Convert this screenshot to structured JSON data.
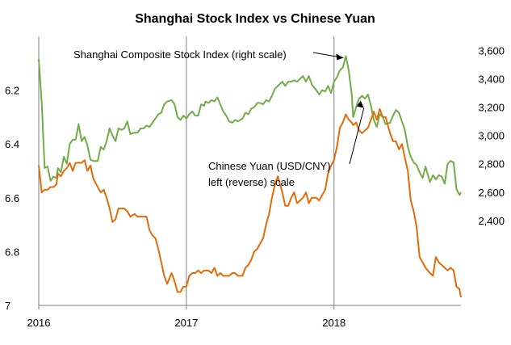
{
  "chart_data": {
    "type": "line",
    "title": "Shanghai Stock Index vs Chinese Yuan",
    "x_tick_labels": [
      "2016",
      "2017",
      "2018"
    ],
    "x_ticks": [
      2016,
      2017,
      2018
    ],
    "x_range": [
      2016.0,
      2018.86
    ],
    "left_axis": {
      "reverse": true,
      "range": [
        6.0,
        7.0
      ],
      "ticks": [
        6.2,
        6.4,
        6.6,
        6.8,
        7
      ],
      "tick_labels": [
        "6.2",
        "6.4",
        "6.6",
        "6.8",
        "7"
      ]
    },
    "right_axis": {
      "range": [
        1800,
        3700
      ],
      "ticks": [
        2400,
        2600,
        2800,
        3000,
        3200,
        3400,
        3600
      ],
      "tick_labels": [
        "2,400",
        "2,600",
        "2,800",
        "3,000",
        "3,200",
        "3,400",
        "3,600"
      ]
    },
    "grid": false,
    "annotations": [
      {
        "text": "Shanghai Composite Stock Index (right scale)",
        "points_to": [
          2018.08,
          3560
        ]
      },
      {
        "text": "Chinese Yuan (USD/CNY)",
        "text2": "left (reverse) scale",
        "points_to": [
          2018.23,
          6.29
        ]
      }
    ],
    "series": [
      {
        "axis": "right",
        "color": "#70ad47",
        "points": [
          [
            2016.0,
            3540
          ],
          [
            2016.02,
            3230
          ],
          [
            2016.04,
            2770
          ],
          [
            2016.06,
            2780
          ],
          [
            2016.08,
            2680
          ],
          [
            2016.1,
            2710
          ],
          [
            2016.12,
            2700
          ],
          [
            2016.13,
            2770
          ],
          [
            2016.15,
            2740
          ],
          [
            2016.17,
            2850
          ],
          [
            2016.19,
            2800
          ],
          [
            2016.21,
            2940
          ],
          [
            2016.23,
            2970
          ],
          [
            2016.25,
            2970
          ],
          [
            2016.27,
            3080
          ],
          [
            2016.29,
            2960
          ],
          [
            2016.31,
            2990
          ],
          [
            2016.33,
            2930
          ],
          [
            2016.35,
            2830
          ],
          [
            2016.37,
            2820
          ],
          [
            2016.4,
            2820
          ],
          [
            2016.42,
            2920
          ],
          [
            2016.44,
            2900
          ],
          [
            2016.46,
            2960
          ],
          [
            2016.48,
            3050
          ],
          [
            2016.5,
            3000
          ],
          [
            2016.52,
            2960
          ],
          [
            2016.54,
            3050
          ],
          [
            2016.56,
            3040
          ],
          [
            2016.58,
            3050
          ],
          [
            2016.6,
            3100
          ],
          [
            2016.62,
            3010
          ],
          [
            2016.65,
            3020
          ],
          [
            2016.67,
            3020
          ],
          [
            2016.69,
            3050
          ],
          [
            2016.71,
            3050
          ],
          [
            2016.73,
            3070
          ],
          [
            2016.75,
            3060
          ],
          [
            2016.77,
            3090
          ],
          [
            2016.79,
            3120
          ],
          [
            2016.81,
            3150
          ],
          [
            2016.83,
            3160
          ],
          [
            2016.85,
            3220
          ],
          [
            2016.87,
            3240
          ],
          [
            2016.9,
            3250
          ],
          [
            2016.92,
            3220
          ],
          [
            2016.94,
            3130
          ],
          [
            2016.96,
            3110
          ],
          [
            2016.98,
            3140
          ],
          [
            2017.0,
            3120
          ],
          [
            2017.02,
            3150
          ],
          [
            2017.04,
            3170
          ],
          [
            2017.06,
            3140
          ],
          [
            2017.08,
            3140
          ],
          [
            2017.1,
            3220
          ],
          [
            2017.12,
            3210
          ],
          [
            2017.13,
            3240
          ],
          [
            2017.15,
            3230
          ],
          [
            2017.17,
            3250
          ],
          [
            2017.19,
            3240
          ],
          [
            2017.21,
            3270
          ],
          [
            2017.23,
            3220
          ],
          [
            2017.25,
            3170
          ],
          [
            2017.27,
            3140
          ],
          [
            2017.29,
            3100
          ],
          [
            2017.31,
            3090
          ],
          [
            2017.33,
            3110
          ],
          [
            2017.35,
            3100
          ],
          [
            2017.38,
            3120
          ],
          [
            2017.4,
            3160
          ],
          [
            2017.42,
            3150
          ],
          [
            2017.44,
            3190
          ],
          [
            2017.46,
            3200
          ],
          [
            2017.48,
            3230
          ],
          [
            2017.5,
            3230
          ],
          [
            2017.52,
            3220
          ],
          [
            2017.54,
            3250
          ],
          [
            2017.56,
            3240
          ],
          [
            2017.58,
            3280
          ],
          [
            2017.6,
            3330
          ],
          [
            2017.62,
            3350
          ],
          [
            2017.65,
            3380
          ],
          [
            2017.67,
            3350
          ],
          [
            2017.69,
            3380
          ],
          [
            2017.71,
            3380
          ],
          [
            2017.73,
            3390
          ],
          [
            2017.75,
            3380
          ],
          [
            2017.77,
            3400
          ],
          [
            2017.79,
            3420
          ],
          [
            2017.81,
            3380
          ],
          [
            2017.83,
            3420
          ],
          [
            2017.85,
            3360
          ],
          [
            2017.88,
            3320
          ],
          [
            2017.9,
            3290
          ],
          [
            2017.92,
            3320
          ],
          [
            2017.94,
            3310
          ],
          [
            2017.96,
            3350
          ],
          [
            2017.98,
            3300
          ],
          [
            2018.0,
            3380
          ],
          [
            2018.02,
            3410
          ],
          [
            2018.04,
            3460
          ],
          [
            2018.06,
            3480
          ],
          [
            2018.08,
            3560
          ],
          [
            2018.1,
            3460
          ],
          [
            2018.12,
            3290
          ],
          [
            2018.13,
            3130
          ],
          [
            2018.15,
            3200
          ],
          [
            2018.17,
            3260
          ],
          [
            2018.19,
            3280
          ],
          [
            2018.21,
            3260
          ],
          [
            2018.23,
            3290
          ],
          [
            2018.25,
            3210
          ],
          [
            2018.27,
            3110
          ],
          [
            2018.29,
            3060
          ],
          [
            2018.31,
            3150
          ],
          [
            2018.33,
            3130
          ],
          [
            2018.35,
            3080
          ],
          [
            2018.38,
            3090
          ],
          [
            2018.4,
            3140
          ],
          [
            2018.42,
            3180
          ],
          [
            2018.44,
            3160
          ],
          [
            2018.46,
            3100
          ],
          [
            2018.48,
            3040
          ],
          [
            2018.5,
            2920
          ],
          [
            2018.52,
            2850
          ],
          [
            2018.54,
            2810
          ],
          [
            2018.56,
            2790
          ],
          [
            2018.58,
            2740
          ],
          [
            2018.6,
            2700
          ],
          [
            2018.62,
            2780
          ],
          [
            2018.65,
            2670
          ],
          [
            2018.67,
            2720
          ],
          [
            2018.69,
            2690
          ],
          [
            2018.71,
            2720
          ],
          [
            2018.73,
            2710
          ],
          [
            2018.75,
            2660
          ],
          [
            2018.77,
            2800
          ],
          [
            2018.79,
            2820
          ],
          [
            2018.81,
            2810
          ],
          [
            2018.83,
            2620
          ],
          [
            2018.85,
            2580
          ],
          [
            2018.86,
            2600
          ]
        ]
      },
      {
        "axis": "left",
        "color": "#e36c09",
        "points": [
          [
            2016.0,
            6.48
          ],
          [
            2016.02,
            6.58
          ],
          [
            2016.04,
            6.57
          ],
          [
            2016.06,
            6.57
          ],
          [
            2016.08,
            6.56
          ],
          [
            2016.1,
            6.56
          ],
          [
            2016.12,
            6.55
          ],
          [
            2016.13,
            6.51
          ],
          [
            2016.15,
            6.52
          ],
          [
            2016.17,
            6.5
          ],
          [
            2016.19,
            6.49
          ],
          [
            2016.21,
            6.47
          ],
          [
            2016.23,
            6.5
          ],
          [
            2016.25,
            6.47
          ],
          [
            2016.27,
            6.47
          ],
          [
            2016.29,
            6.47
          ],
          [
            2016.31,
            6.46
          ],
          [
            2016.33,
            6.5
          ],
          [
            2016.35,
            6.48
          ],
          [
            2016.37,
            6.53
          ],
          [
            2016.4,
            6.56
          ],
          [
            2016.42,
            6.58
          ],
          [
            2016.44,
            6.57
          ],
          [
            2016.46,
            6.6
          ],
          [
            2016.48,
            6.64
          ],
          [
            2016.5,
            6.69
          ],
          [
            2016.52,
            6.68
          ],
          [
            2016.54,
            6.64
          ],
          [
            2016.56,
            6.64
          ],
          [
            2016.58,
            6.64
          ],
          [
            2016.6,
            6.65
          ],
          [
            2016.62,
            6.67
          ],
          [
            2016.65,
            6.66
          ],
          [
            2016.67,
            6.67
          ],
          [
            2016.69,
            6.67
          ],
          [
            2016.71,
            6.67
          ],
          [
            2016.73,
            6.67
          ],
          [
            2016.75,
            6.72
          ],
          [
            2016.77,
            6.74
          ],
          [
            2016.79,
            6.75
          ],
          [
            2016.81,
            6.79
          ],
          [
            2016.83,
            6.84
          ],
          [
            2016.85,
            6.89
          ],
          [
            2016.87,
            6.92
          ],
          [
            2016.9,
            6.88
          ],
          [
            2016.92,
            6.91
          ],
          [
            2016.94,
            6.95
          ],
          [
            2016.96,
            6.95
          ],
          [
            2016.98,
            6.93
          ],
          [
            2017.0,
            6.93
          ],
          [
            2017.02,
            6.89
          ],
          [
            2017.04,
            6.88
          ],
          [
            2017.06,
            6.88
          ],
          [
            2017.08,
            6.87
          ],
          [
            2017.1,
            6.88
          ],
          [
            2017.12,
            6.87
          ],
          [
            2017.13,
            6.87
          ],
          [
            2017.15,
            6.87
          ],
          [
            2017.17,
            6.88
          ],
          [
            2017.19,
            6.86
          ],
          [
            2017.21,
            6.89
          ],
          [
            2017.23,
            6.88
          ],
          [
            2017.25,
            6.89
          ],
          [
            2017.27,
            6.89
          ],
          [
            2017.29,
            6.89
          ],
          [
            2017.31,
            6.88
          ],
          [
            2017.33,
            6.88
          ],
          [
            2017.35,
            6.89
          ],
          [
            2017.38,
            6.89
          ],
          [
            2017.4,
            6.86
          ],
          [
            2017.42,
            6.85
          ],
          [
            2017.44,
            6.83
          ],
          [
            2017.46,
            6.8
          ],
          [
            2017.48,
            6.79
          ],
          [
            2017.5,
            6.77
          ],
          [
            2017.52,
            6.75
          ],
          [
            2017.54,
            6.7
          ],
          [
            2017.56,
            6.66
          ],
          [
            2017.58,
            6.6
          ],
          [
            2017.6,
            6.55
          ],
          [
            2017.62,
            6.52
          ],
          [
            2017.65,
            6.58
          ],
          [
            2017.67,
            6.63
          ],
          [
            2017.69,
            6.63
          ],
          [
            2017.71,
            6.6
          ],
          [
            2017.73,
            6.58
          ],
          [
            2017.75,
            6.62
          ],
          [
            2017.77,
            6.61
          ],
          [
            2017.79,
            6.6
          ],
          [
            2017.81,
            6.58
          ],
          [
            2017.83,
            6.62
          ],
          [
            2017.85,
            6.6
          ],
          [
            2017.88,
            6.6
          ],
          [
            2017.9,
            6.61
          ],
          [
            2017.92,
            6.59
          ],
          [
            2017.94,
            6.57
          ],
          [
            2017.96,
            6.51
          ],
          [
            2017.98,
            6.48
          ],
          [
            2018.0,
            6.46
          ],
          [
            2018.02,
            6.41
          ],
          [
            2018.04,
            6.34
          ],
          [
            2018.06,
            6.32
          ],
          [
            2018.08,
            6.29
          ],
          [
            2018.1,
            6.31
          ],
          [
            2018.12,
            6.32
          ],
          [
            2018.13,
            6.33
          ],
          [
            2018.15,
            6.32
          ],
          [
            2018.17,
            6.35
          ],
          [
            2018.19,
            6.36
          ],
          [
            2018.21,
            6.35
          ],
          [
            2018.23,
            6.34
          ],
          [
            2018.25,
            6.31
          ],
          [
            2018.27,
            6.28
          ],
          [
            2018.29,
            6.31
          ],
          [
            2018.31,
            6.27
          ],
          [
            2018.33,
            6.3
          ],
          [
            2018.35,
            6.3
          ],
          [
            2018.38,
            6.36
          ],
          [
            2018.4,
            6.39
          ],
          [
            2018.42,
            6.39
          ],
          [
            2018.44,
            6.42
          ],
          [
            2018.46,
            6.4
          ],
          [
            2018.48,
            6.45
          ],
          [
            2018.5,
            6.5
          ],
          [
            2018.52,
            6.61
          ],
          [
            2018.54,
            6.65
          ],
          [
            2018.56,
            6.71
          ],
          [
            2018.58,
            6.82
          ],
          [
            2018.6,
            6.84
          ],
          [
            2018.62,
            6.86
          ],
          [
            2018.65,
            6.88
          ],
          [
            2018.67,
            6.89
          ],
          [
            2018.69,
            6.82
          ],
          [
            2018.71,
            6.84
          ],
          [
            2018.73,
            6.85
          ],
          [
            2018.75,
            6.86
          ],
          [
            2018.77,
            6.87
          ],
          [
            2018.79,
            6.86
          ],
          [
            2018.81,
            6.87
          ],
          [
            2018.83,
            6.93
          ],
          [
            2018.85,
            6.94
          ],
          [
            2018.86,
            6.97
          ]
        ]
      }
    ]
  }
}
